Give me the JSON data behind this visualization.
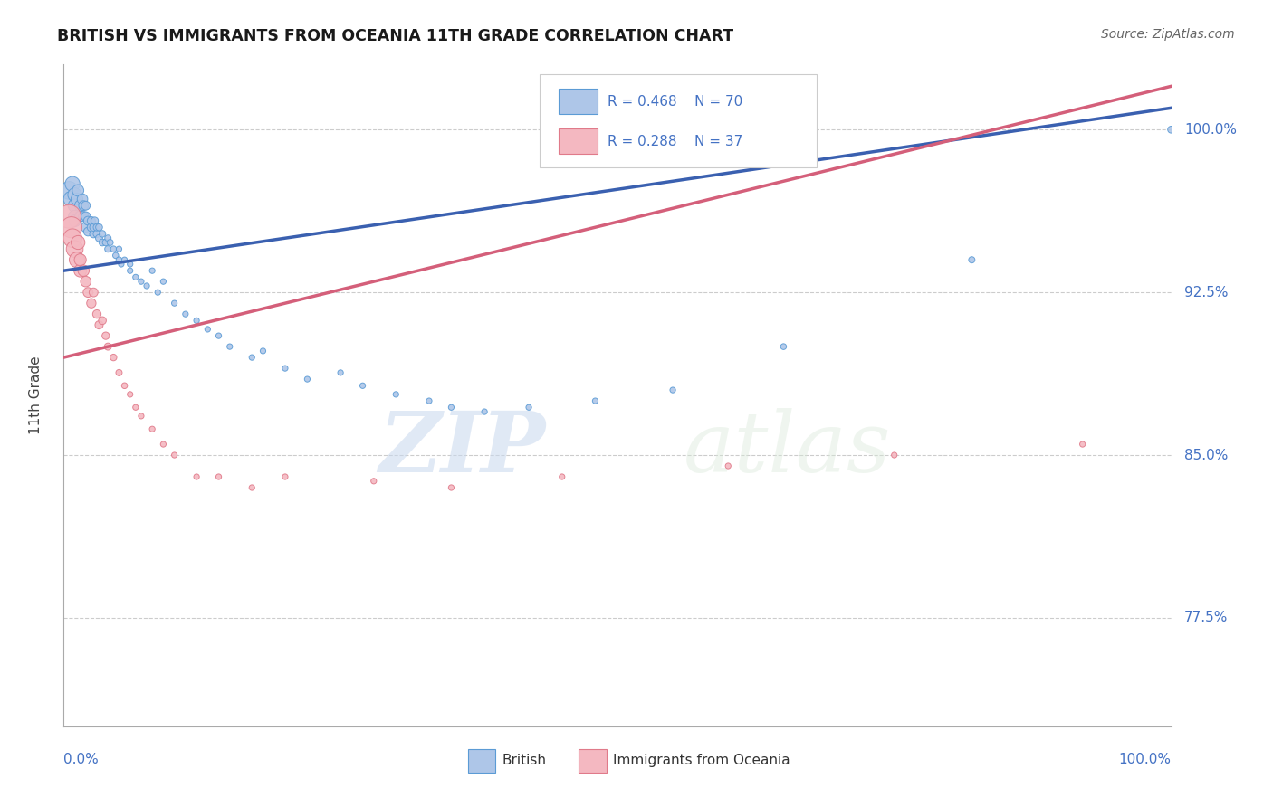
{
  "title": "BRITISH VS IMMIGRANTS FROM OCEANIA 11TH GRADE CORRELATION CHART",
  "source": "Source: ZipAtlas.com",
  "ylabel": "11th Grade",
  "ytick_labels": [
    "100.0%",
    "92.5%",
    "85.0%",
    "77.5%"
  ],
  "ytick_values": [
    1.0,
    0.925,
    0.85,
    0.775
  ],
  "xmin": 0.0,
  "xmax": 1.0,
  "ymin": 0.725,
  "ymax": 1.03,
  "legend_blue_R": "R = 0.468",
  "legend_blue_N": "N = 70",
  "legend_pink_R": "R = 0.288",
  "legend_pink_N": "N = 37",
  "blue_color": "#aec6e8",
  "blue_edge_color": "#5b9bd5",
  "pink_color": "#f4b8c1",
  "pink_edge_color": "#e07a8a",
  "trendline_blue": "#3a60b0",
  "trendline_pink": "#d45f7a",
  "blue_scatter_x": [
    0.005,
    0.007,
    0.008,
    0.01,
    0.01,
    0.01,
    0.01,
    0.012,
    0.013,
    0.015,
    0.015,
    0.017,
    0.018,
    0.018,
    0.02,
    0.02,
    0.02,
    0.022,
    0.022,
    0.025,
    0.025,
    0.027,
    0.027,
    0.028,
    0.03,
    0.03,
    0.032,
    0.032,
    0.035,
    0.035,
    0.038,
    0.04,
    0.04,
    0.042,
    0.045,
    0.047,
    0.05,
    0.05,
    0.052,
    0.055,
    0.06,
    0.06,
    0.065,
    0.07,
    0.075,
    0.08,
    0.085,
    0.09,
    0.1,
    0.11,
    0.12,
    0.13,
    0.14,
    0.15,
    0.17,
    0.18,
    0.2,
    0.22,
    0.25,
    0.27,
    0.3,
    0.33,
    0.35,
    0.38,
    0.42,
    0.48,
    0.55,
    0.65,
    0.82,
    1.0
  ],
  "blue_scatter_y": [
    0.972,
    0.968,
    0.975,
    0.97,
    0.965,
    0.96,
    0.958,
    0.968,
    0.972,
    0.965,
    0.96,
    0.968,
    0.96,
    0.965,
    0.955,
    0.96,
    0.965,
    0.958,
    0.953,
    0.955,
    0.958,
    0.952,
    0.955,
    0.958,
    0.952,
    0.955,
    0.95,
    0.955,
    0.948,
    0.952,
    0.948,
    0.945,
    0.95,
    0.948,
    0.945,
    0.942,
    0.94,
    0.945,
    0.938,
    0.94,
    0.935,
    0.938,
    0.932,
    0.93,
    0.928,
    0.935,
    0.925,
    0.93,
    0.92,
    0.915,
    0.912,
    0.908,
    0.905,
    0.9,
    0.895,
    0.898,
    0.89,
    0.885,
    0.888,
    0.882,
    0.878,
    0.875,
    0.872,
    0.87,
    0.872,
    0.875,
    0.88,
    0.9,
    0.94,
    1.0
  ],
  "blue_scatter_sizes": [
    200,
    160,
    140,
    120,
    110,
    100,
    90,
    90,
    85,
    80,
    75,
    70,
    65,
    60,
    60,
    55,
    50,
    50,
    48,
    45,
    42,
    40,
    38,
    36,
    35,
    33,
    32,
    30,
    30,
    28,
    28,
    26,
    25,
    24,
    23,
    22,
    22,
    20,
    20,
    20,
    20,
    20,
    20,
    20,
    20,
    20,
    20,
    20,
    20,
    20,
    20,
    20,
    20,
    20,
    20,
    20,
    20,
    20,
    20,
    20,
    20,
    20,
    20,
    20,
    20,
    20,
    20,
    22,
    25,
    30
  ],
  "pink_scatter_x": [
    0.005,
    0.007,
    0.008,
    0.01,
    0.012,
    0.013,
    0.015,
    0.015,
    0.018,
    0.02,
    0.022,
    0.025,
    0.027,
    0.03,
    0.032,
    0.035,
    0.038,
    0.04,
    0.045,
    0.05,
    0.055,
    0.06,
    0.065,
    0.07,
    0.08,
    0.09,
    0.1,
    0.12,
    0.14,
    0.17,
    0.2,
    0.28,
    0.35,
    0.45,
    0.6,
    0.75,
    0.92
  ],
  "pink_scatter_y": [
    0.96,
    0.955,
    0.95,
    0.945,
    0.94,
    0.948,
    0.935,
    0.94,
    0.935,
    0.93,
    0.925,
    0.92,
    0.925,
    0.915,
    0.91,
    0.912,
    0.905,
    0.9,
    0.895,
    0.888,
    0.882,
    0.878,
    0.872,
    0.868,
    0.862,
    0.855,
    0.85,
    0.84,
    0.84,
    0.835,
    0.84,
    0.838,
    0.835,
    0.84,
    0.845,
    0.85,
    0.855
  ],
  "pink_scatter_sizes": [
    350,
    280,
    220,
    180,
    150,
    120,
    100,
    90,
    80,
    70,
    60,
    55,
    50,
    45,
    42,
    38,
    35,
    32,
    28,
    25,
    22,
    20,
    20,
    20,
    20,
    20,
    20,
    20,
    20,
    20,
    20,
    20,
    20,
    20,
    20,
    20,
    20
  ],
  "watermark_zip": "ZIP",
  "watermark_atlas": "atlas",
  "background_color": "#ffffff",
  "grid_color": "#cccccc",
  "grid_style": "--",
  "trendline_blue_x0": 0.0,
  "trendline_blue_y0": 0.935,
  "trendline_blue_x1": 1.0,
  "trendline_blue_y1": 1.01,
  "trendline_pink_x0": 0.0,
  "trendline_pink_y0": 0.895,
  "trendline_pink_x1": 1.0,
  "trendline_pink_y1": 1.02
}
